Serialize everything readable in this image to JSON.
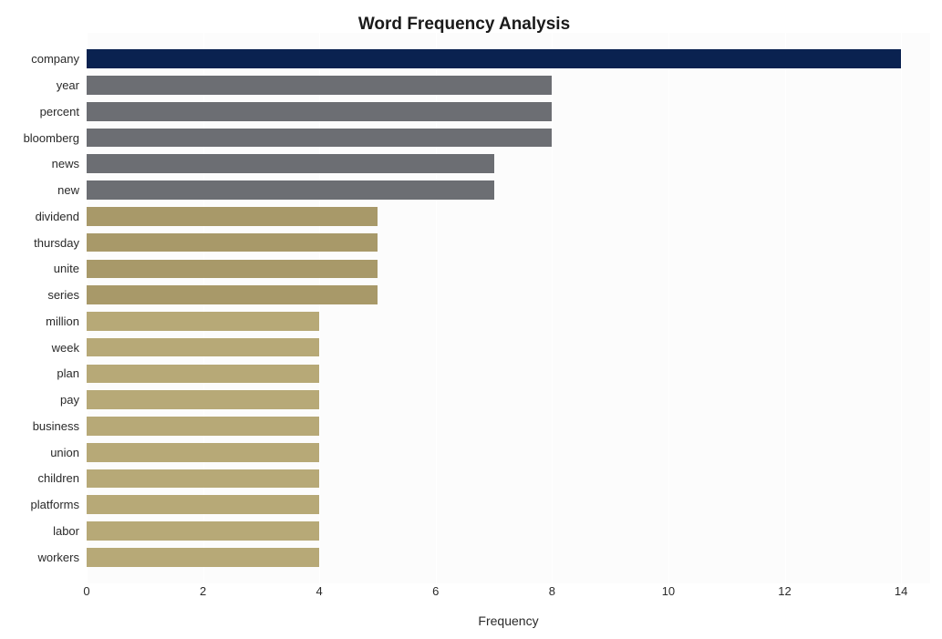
{
  "chart": {
    "type": "bar-horizontal",
    "title": "Word Frequency Analysis",
    "title_fontsize": 19,
    "title_fontweight": 700,
    "xlabel": "Frequency",
    "xlabel_fontsize": 14,
    "ylabel_fontsize": 13,
    "background_color": "#ffffff",
    "plot_background_color": "#fcfcfc",
    "grid_color": "#ffffff",
    "text_color": "#2a2a2a",
    "xlim": [
      0,
      14.5
    ],
    "x_ticks": [
      0,
      2,
      4,
      6,
      8,
      10,
      12,
      14
    ],
    "bar_width_ratio": 0.72,
    "row_count": 21,
    "top_pad_rows": 0.5,
    "bottom_pad_rows": 0.5,
    "colors": {
      "highlight": "#0a2250",
      "group_high": "#6c6e73",
      "group_mid": "#a89969",
      "group_low": "#b7a977"
    },
    "data": [
      {
        "label": "company",
        "value": 14,
        "color": "#0a2250"
      },
      {
        "label": "year",
        "value": 8,
        "color": "#6c6e73"
      },
      {
        "label": "percent",
        "value": 8,
        "color": "#6c6e73"
      },
      {
        "label": "bloomberg",
        "value": 8,
        "color": "#6c6e73"
      },
      {
        "label": "news",
        "value": 7,
        "color": "#6c6e73"
      },
      {
        "label": "new",
        "value": 7,
        "color": "#6c6e73"
      },
      {
        "label": "dividend",
        "value": 5,
        "color": "#a89969"
      },
      {
        "label": "thursday",
        "value": 5,
        "color": "#a89969"
      },
      {
        "label": "unite",
        "value": 5,
        "color": "#a89969"
      },
      {
        "label": "series",
        "value": 5,
        "color": "#a89969"
      },
      {
        "label": "million",
        "value": 4,
        "color": "#b7a977"
      },
      {
        "label": "week",
        "value": 4,
        "color": "#b7a977"
      },
      {
        "label": "plan",
        "value": 4,
        "color": "#b7a977"
      },
      {
        "label": "pay",
        "value": 4,
        "color": "#b7a977"
      },
      {
        "label": "business",
        "value": 4,
        "color": "#b7a977"
      },
      {
        "label": "union",
        "value": 4,
        "color": "#b7a977"
      },
      {
        "label": "children",
        "value": 4,
        "color": "#b7a977"
      },
      {
        "label": "platforms",
        "value": 4,
        "color": "#b7a977"
      },
      {
        "label": "labor",
        "value": 4,
        "color": "#b7a977"
      },
      {
        "label": "workers",
        "value": 4,
        "color": "#b7a977"
      }
    ]
  }
}
